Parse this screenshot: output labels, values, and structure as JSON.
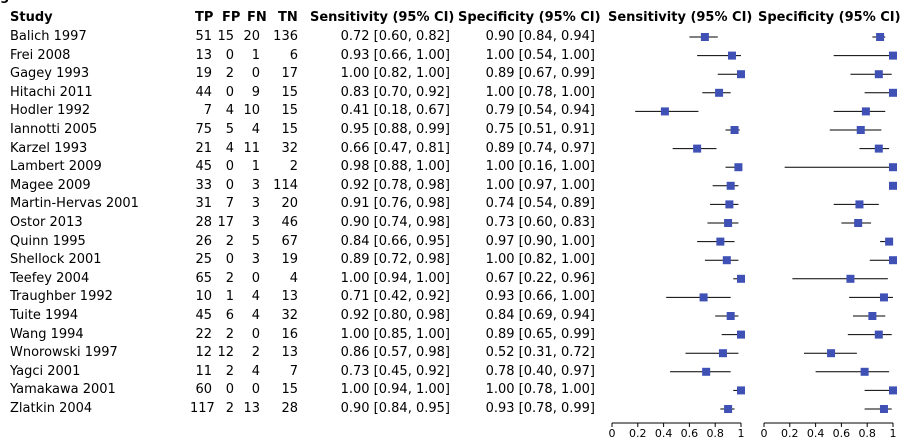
{
  "caption_fragment": "g",
  "headers": {
    "study": "Study",
    "tp": "TP",
    "fp": "FP",
    "fn": "FN",
    "tn": "TN",
    "sens_ci": "Sensitivity (95% CI)",
    "spec_ci": "Specificity (95% CI)",
    "sens_plot": "Sensitivity (95% CI)",
    "spec_plot": "Specificity (95% CI)"
  },
  "chart_data": {
    "type": "table",
    "plot_type": "forest",
    "xlim": [
      0,
      1
    ],
    "ticks": [
      "0",
      "0.2",
      "0.4",
      "0.6",
      "0.8",
      "1"
    ],
    "rows": [
      {
        "study": "Balich 1997",
        "tp": "51",
        "fp": "15",
        "fn": "20",
        "tn": "136",
        "sens": 0.72,
        "sens_lo": 0.6,
        "sens_hi": 0.82,
        "sens_text": "0.72 [0.60, 0.82]",
        "spec": 0.9,
        "spec_lo": 0.84,
        "spec_hi": 0.94,
        "spec_text": "0.90 [0.84, 0.94]"
      },
      {
        "study": "Frei 2008",
        "tp": "13",
        "fp": "0",
        "fn": "1",
        "tn": "6",
        "sens": 0.93,
        "sens_lo": 0.66,
        "sens_hi": 1.0,
        "sens_text": "0.93 [0.66, 1.00]",
        "spec": 1.0,
        "spec_lo": 0.54,
        "spec_hi": 1.0,
        "spec_text": "1.00 [0.54, 1.00]"
      },
      {
        "study": "Gagey 1993",
        "tp": "19",
        "fp": "2",
        "fn": "0",
        "tn": "17",
        "sens": 1.0,
        "sens_lo": 0.82,
        "sens_hi": 1.0,
        "sens_text": "1.00 [0.82, 1.00]",
        "spec": 0.89,
        "spec_lo": 0.67,
        "spec_hi": 0.99,
        "spec_text": "0.89 [0.67, 0.99]"
      },
      {
        "study": "Hitachi 2011",
        "tp": "44",
        "fp": "0",
        "fn": "9",
        "tn": "15",
        "sens": 0.83,
        "sens_lo": 0.7,
        "sens_hi": 0.92,
        "sens_text": "0.83 [0.70, 0.92]",
        "spec": 1.0,
        "spec_lo": 0.78,
        "spec_hi": 1.0,
        "spec_text": "1.00 [0.78, 1.00]"
      },
      {
        "study": "Hodler 1992",
        "tp": "7",
        "fp": "4",
        "fn": "10",
        "tn": "15",
        "sens": 0.41,
        "sens_lo": 0.18,
        "sens_hi": 0.67,
        "sens_text": "0.41 [0.18, 0.67]",
        "spec": 0.79,
        "spec_lo": 0.54,
        "spec_hi": 0.94,
        "spec_text": "0.79 [0.54, 0.94]"
      },
      {
        "study": "Iannotti 2005",
        "tp": "75",
        "fp": "5",
        "fn": "4",
        "tn": "15",
        "sens": 0.95,
        "sens_lo": 0.88,
        "sens_hi": 0.99,
        "sens_text": "0.95 [0.88, 0.99]",
        "spec": 0.75,
        "spec_lo": 0.51,
        "spec_hi": 0.91,
        "spec_text": "0.75 [0.51, 0.91]"
      },
      {
        "study": "Karzel 1993",
        "tp": "21",
        "fp": "4",
        "fn": "11",
        "tn": "32",
        "sens": 0.66,
        "sens_lo": 0.47,
        "sens_hi": 0.81,
        "sens_text": "0.66 [0.47, 0.81]",
        "spec": 0.89,
        "spec_lo": 0.74,
        "spec_hi": 0.97,
        "spec_text": "0.89 [0.74, 0.97]"
      },
      {
        "study": "Lambert 2009",
        "tp": "45",
        "fp": "0",
        "fn": "1",
        "tn": "2",
        "sens": 0.98,
        "sens_lo": 0.88,
        "sens_hi": 1.0,
        "sens_text": "0.98 [0.88, 1.00]",
        "spec": 1.0,
        "spec_lo": 0.16,
        "spec_hi": 1.0,
        "spec_text": "1.00 [0.16, 1.00]"
      },
      {
        "study": "Magee 2009",
        "tp": "33",
        "fp": "0",
        "fn": "3",
        "tn": "114",
        "sens": 0.92,
        "sens_lo": 0.78,
        "sens_hi": 0.98,
        "sens_text": "0.92 [0.78, 0.98]",
        "spec": 1.0,
        "spec_lo": 0.97,
        "spec_hi": 1.0,
        "spec_text": "1.00 [0.97, 1.00]"
      },
      {
        "study": "Martin-Hervas 2001",
        "tp": "31",
        "fp": "7",
        "fn": "3",
        "tn": "20",
        "sens": 0.91,
        "sens_lo": 0.76,
        "sens_hi": 0.98,
        "sens_text": "0.91 [0.76, 0.98]",
        "spec": 0.74,
        "spec_lo": 0.54,
        "spec_hi": 0.89,
        "spec_text": "0.74 [0.54, 0.89]"
      },
      {
        "study": "Ostor 2013",
        "tp": "28",
        "fp": "17",
        "fn": "3",
        "tn": "46",
        "sens": 0.9,
        "sens_lo": 0.74,
        "sens_hi": 0.98,
        "sens_text": "0.90 [0.74, 0.98]",
        "spec": 0.73,
        "spec_lo": 0.6,
        "spec_hi": 0.83,
        "spec_text": "0.73 [0.60, 0.83]"
      },
      {
        "study": "Quinn 1995",
        "tp": "26",
        "fp": "2",
        "fn": "5",
        "tn": "67",
        "sens": 0.84,
        "sens_lo": 0.66,
        "sens_hi": 0.95,
        "sens_text": "0.84 [0.66, 0.95]",
        "spec": 0.97,
        "spec_lo": 0.9,
        "spec_hi": 1.0,
        "spec_text": "0.97 [0.90, 1.00]"
      },
      {
        "study": "Shellock 2001",
        "tp": "25",
        "fp": "0",
        "fn": "3",
        "tn": "19",
        "sens": 0.89,
        "sens_lo": 0.72,
        "sens_hi": 0.98,
        "sens_text": "0.89 [0.72, 0.98]",
        "spec": 1.0,
        "spec_lo": 0.82,
        "spec_hi": 1.0,
        "spec_text": "1.00 [0.82, 1.00]"
      },
      {
        "study": "Teefey 2004",
        "tp": "65",
        "fp": "2",
        "fn": "0",
        "tn": "4",
        "sens": 1.0,
        "sens_lo": 0.94,
        "sens_hi": 1.0,
        "sens_text": "1.00 [0.94, 1.00]",
        "spec": 0.67,
        "spec_lo": 0.22,
        "spec_hi": 0.96,
        "spec_text": "0.67 [0.22, 0.96]"
      },
      {
        "study": "Traughber 1992",
        "tp": "10",
        "fp": "1",
        "fn": "4",
        "tn": "13",
        "sens": 0.71,
        "sens_lo": 0.42,
        "sens_hi": 0.92,
        "sens_text": "0.71 [0.42, 0.92]",
        "spec": 0.93,
        "spec_lo": 0.66,
        "spec_hi": 1.0,
        "spec_text": "0.93 [0.66, 1.00]"
      },
      {
        "study": "Tuite 1994",
        "tp": "45",
        "fp": "6",
        "fn": "4",
        "tn": "32",
        "sens": 0.92,
        "sens_lo": 0.8,
        "sens_hi": 0.98,
        "sens_text": "0.92 [0.80, 0.98]",
        "spec": 0.84,
        "spec_lo": 0.69,
        "spec_hi": 0.94,
        "spec_text": "0.84 [0.69, 0.94]"
      },
      {
        "study": "Wang 1994",
        "tp": "22",
        "fp": "2",
        "fn": "0",
        "tn": "16",
        "sens": 1.0,
        "sens_lo": 0.85,
        "sens_hi": 1.0,
        "sens_text": "1.00 [0.85, 1.00]",
        "spec": 0.89,
        "spec_lo": 0.65,
        "spec_hi": 0.99,
        "spec_text": "0.89 [0.65, 0.99]"
      },
      {
        "study": "Wnorowski 1997",
        "tp": "12",
        "fp": "12",
        "fn": "2",
        "tn": "13",
        "sens": 0.86,
        "sens_lo": 0.57,
        "sens_hi": 0.98,
        "sens_text": "0.86 [0.57, 0.98]",
        "spec": 0.52,
        "spec_lo": 0.31,
        "spec_hi": 0.72,
        "spec_text": "0.52 [0.31, 0.72]"
      },
      {
        "study": "Yagci 2001",
        "tp": "11",
        "fp": "2",
        "fn": "4",
        "tn": "7",
        "sens": 0.73,
        "sens_lo": 0.45,
        "sens_hi": 0.92,
        "sens_text": "0.73 [0.45, 0.92]",
        "spec": 0.78,
        "spec_lo": 0.4,
        "spec_hi": 0.97,
        "spec_text": "0.78 [0.40, 0.97]"
      },
      {
        "study": "Yamakawa 2001",
        "tp": "60",
        "fp": "0",
        "fn": "0",
        "tn": "15",
        "sens": 1.0,
        "sens_lo": 0.94,
        "sens_hi": 1.0,
        "sens_text": "1.00 [0.94, 1.00]",
        "spec": 1.0,
        "spec_lo": 0.78,
        "spec_hi": 1.0,
        "spec_text": "1.00 [0.78, 1.00]"
      },
      {
        "study": "Zlatkin 2004",
        "tp": "117",
        "fp": "2",
        "fn": "13",
        "tn": "28",
        "sens": 0.9,
        "sens_lo": 0.84,
        "sens_hi": 0.95,
        "sens_text": "0.90 [0.84, 0.95]",
        "spec": 0.93,
        "spec_lo": 0.78,
        "spec_hi": 0.99,
        "spec_text": "0.93 [0.78, 0.99]"
      }
    ]
  },
  "colors": {
    "marker": "#3f51b5",
    "line": "#000000",
    "text": "#000000"
  }
}
